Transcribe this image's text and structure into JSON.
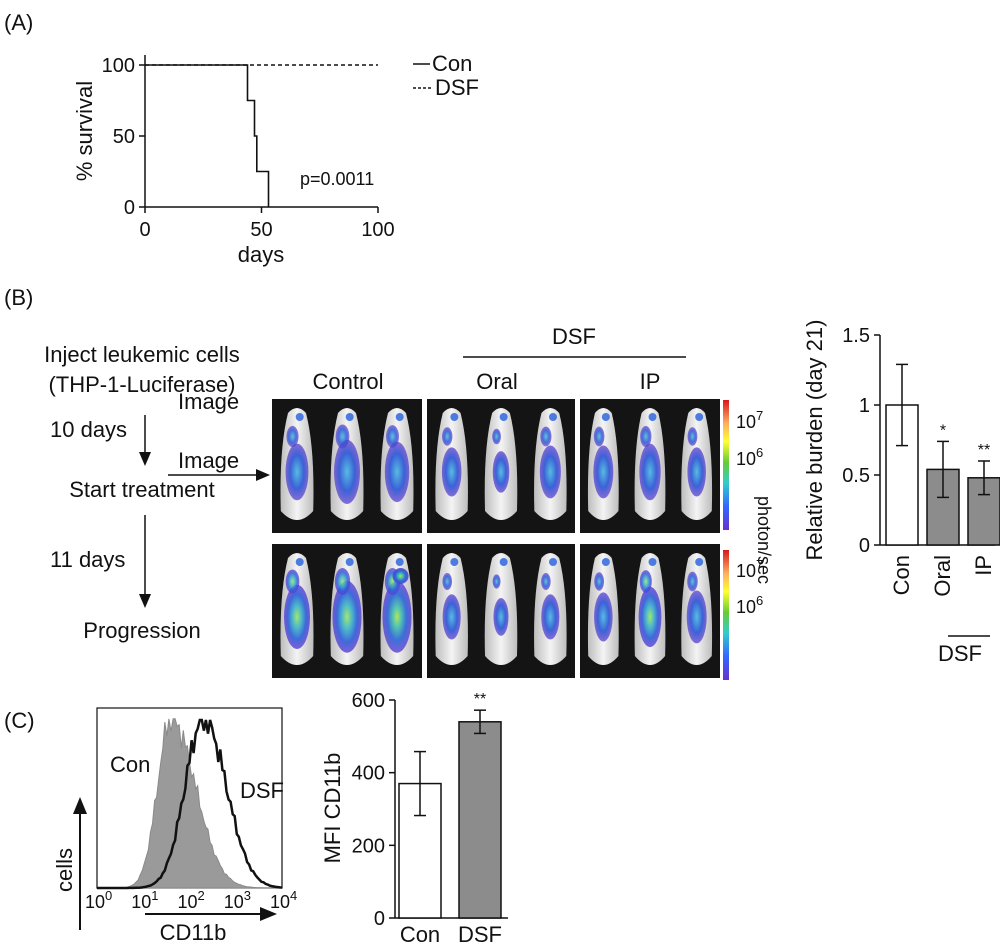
{
  "panels": {
    "a": "(A)",
    "b": "(B)",
    "c": "(C)"
  },
  "chart_data": [
    {
      "type": "line",
      "panel": "A",
      "xlabel": "days",
      "ylabel": "% survival",
      "xlim": [
        0,
        100
      ],
      "ylim": [
        0,
        100
      ],
      "xticks": [
        "0",
        "50",
        "100"
      ],
      "yticks": [
        "0",
        "50",
        "100"
      ],
      "annotation": "p=0.0011",
      "legend_position": "right",
      "series": [
        {
          "name": "Con",
          "style": "solid",
          "x": [
            0,
            44,
            44,
            47,
            47,
            48,
            48,
            53,
            53
          ],
          "y": [
            100,
            100,
            75,
            75,
            50,
            50,
            25,
            25,
            0
          ]
        },
        {
          "name": "DSF",
          "style": "dashed",
          "x": [
            0,
            100
          ],
          "y": [
            100,
            100
          ]
        }
      ]
    },
    {
      "type": "bar",
      "panel": "B",
      "ylabel": "Relative burden (day 21)",
      "ylim": [
        0,
        1.5
      ],
      "yticks": [
        "0",
        "0.5",
        "1",
        "1.5"
      ],
      "categories": [
        "Con",
        "Oral",
        "IP"
      ],
      "group_label": "DSF",
      "values": [
        1.0,
        0.54,
        0.48
      ],
      "errors": [
        0.29,
        0.2,
        0.12
      ],
      "significance": [
        "",
        "*",
        "**"
      ],
      "fills": [
        "#ffffff",
        "#8c8c8c",
        "#8c8c8c"
      ]
    },
    {
      "type": "area",
      "panel": "C-histogram",
      "ylabel": "cells",
      "xlabel": "CD11b",
      "xscale": "log",
      "xticks": [
        {
          "base": "10",
          "exp": "0"
        },
        {
          "base": "10",
          "exp": "1"
        },
        {
          "base": "10",
          "exp": "2"
        },
        {
          "base": "10",
          "exp": "3"
        },
        {
          "base": "10",
          "exp": "4"
        }
      ],
      "series": [
        {
          "name": "Con",
          "fill": "#9a9a9a",
          "peak_log10": 1.6
        },
        {
          "name": "DSF",
          "fill": "none",
          "peak_log10": 2.3
        }
      ]
    },
    {
      "type": "bar",
      "panel": "C",
      "ylabel": "MFI CD11b",
      "ylim": [
        0,
        600
      ],
      "yticks": [
        "0",
        "200",
        "400",
        "600"
      ],
      "categories": [
        "Con",
        "DSF"
      ],
      "values": [
        370,
        540
      ],
      "errors": [
        88,
        32
      ],
      "significance": [
        "",
        "**"
      ],
      "fills": [
        "#ffffff",
        "#8c8c8c"
      ]
    }
  ],
  "schematic": {
    "inject_line1": "Inject leukemic cells",
    "inject_line2": "(THP-1-Luciferase)",
    "step1_days": "10 days",
    "step1_image": "Image",
    "step1_event": "Start treatment",
    "step2_days": "11 days",
    "step2_image": "Image",
    "step2_event": "Progression"
  },
  "imaging": {
    "group_control": "Control",
    "group_dsf": "DSF",
    "route_oral": "Oral",
    "route_ip": "IP",
    "scale_unit": "photon/sec",
    "scale_ticks": [
      {
        "base": "10",
        "exp": "7"
      },
      {
        "base": "10",
        "exp": "6"
      }
    ],
    "scale_colors": [
      "#d7191c",
      "#fdae61",
      "#ffff33",
      "#66cc33",
      "#33cccc",
      "#3366ff",
      "#6633cc"
    ]
  }
}
